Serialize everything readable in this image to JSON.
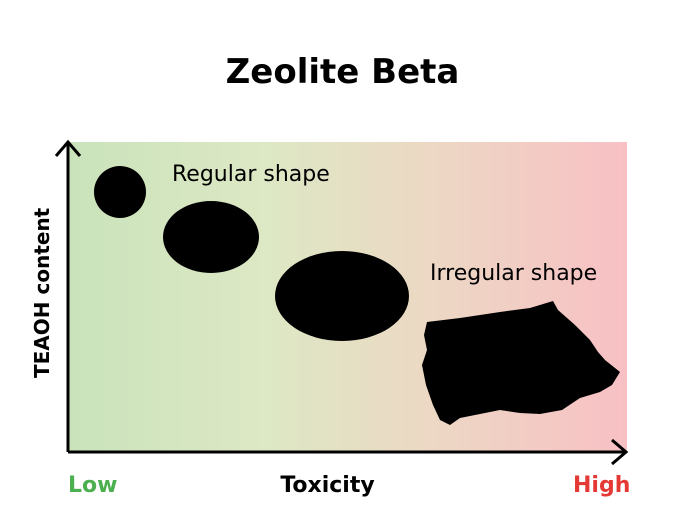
{
  "title": "Zeolite Beta",
  "y_axis_label": "TEAOH content",
  "x_axis_label": "Toxicity",
  "x_low_label": "Low",
  "x_high_label": "High",
  "annotations": {
    "regular": "Regular shape",
    "irregular": "Irregular shape"
  },
  "colors": {
    "low": "#4caf50",
    "high": "#e53935",
    "bg_left": "#c9e3bb",
    "bg_mid": "#dde8c4",
    "bg_beige": "#ecd8c4",
    "bg_right": "#f8c0c4",
    "shape": "#000000"
  }
}
